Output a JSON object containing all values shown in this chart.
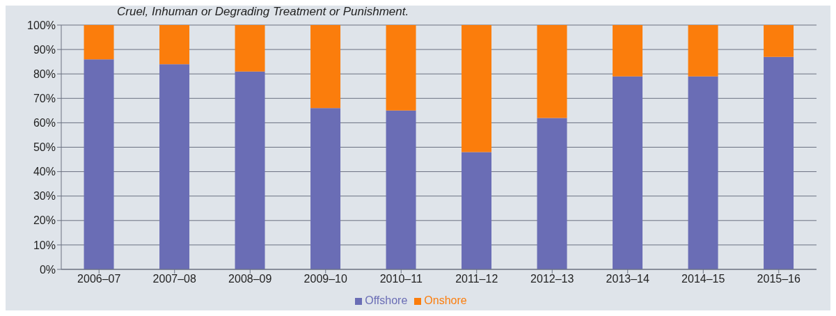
{
  "chart_data": {
    "type": "bar",
    "stacked": true,
    "annotations": [
      "Cruel, Inhuman or Degrading Treatment or Punishment."
    ],
    "categories": [
      "2006–07",
      "2007–08",
      "2008–09",
      "2009–10",
      "2010–11",
      "2011–12",
      "2012–13",
      "2013–14",
      "2014–15",
      "2015–16"
    ],
    "series": [
      {
        "name": "Offshore",
        "color": "#6a6db5",
        "values": [
          86,
          84,
          81,
          66,
          65,
          48,
          62,
          79,
          79,
          87
        ]
      },
      {
        "name": "Onshore",
        "color": "#fb7d0c",
        "values": [
          14,
          16,
          19,
          34,
          35,
          52,
          38,
          21,
          21,
          13
        ]
      }
    ],
    "ylim": [
      0,
      100
    ],
    "yticks": [
      {
        "value": 0,
        "label": "0%"
      },
      {
        "value": 10,
        "label": "10%"
      },
      {
        "value": 20,
        "label": "20%"
      },
      {
        "value": 30,
        "label": "30%"
      },
      {
        "value": 40,
        "label": "40%"
      },
      {
        "value": 50,
        "label": "50%"
      },
      {
        "value": 60,
        "label": "60%"
      },
      {
        "value": 70,
        "label": "70%"
      },
      {
        "value": 80,
        "label": "80%"
      },
      {
        "value": 90,
        "label": "90%"
      },
      {
        "value": 100,
        "label": "100%"
      }
    ],
    "grid": "y",
    "legend": "bottom"
  }
}
